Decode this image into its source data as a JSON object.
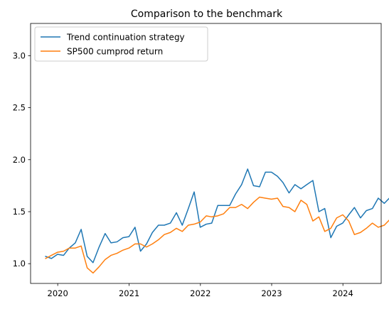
{
  "chart_data": {
    "type": "line",
    "title": "Comparison to the benchmark",
    "xlabel": "",
    "ylabel": "",
    "x_axis": {
      "type": "date",
      "ticks": [
        "2020",
        "2021",
        "2022",
        "2023",
        "2024"
      ]
    },
    "y_axis": {
      "ticks": [
        1.0,
        1.5,
        2.0,
        2.5,
        3.0
      ],
      "tick_labels": [
        "1.0",
        "1.5",
        "2.0",
        "2.5",
        "3.0"
      ],
      "range": [
        0.81,
        3.31
      ]
    },
    "x_range": [
      "2019-08-15",
      "2024-07-15"
    ],
    "grid": false,
    "legend": "top-left",
    "series": [
      {
        "name": "Trend continuation strategy",
        "color": "#1f77b4",
        "points": [
          [
            "2019-10-31",
            1.07
          ],
          [
            "2019-11-30",
            1.05
          ],
          [
            "2019-12-31",
            1.09
          ],
          [
            "2020-01-31",
            1.08
          ],
          [
            "2020-02-29",
            1.15
          ],
          [
            "2020-03-31",
            1.2
          ],
          [
            "2020-04-30",
            1.33
          ],
          [
            "2020-05-31",
            1.07
          ],
          [
            "2020-06-30",
            1.01
          ],
          [
            "2020-07-31",
            1.16
          ],
          [
            "2020-08-31",
            1.29
          ],
          [
            "2020-09-30",
            1.19
          ],
          [
            "2020-10-31",
            1.21
          ],
          [
            "2020-11-30",
            1.25
          ],
          [
            "2020-12-31",
            1.26
          ],
          [
            "2021-01-31",
            1.35
          ],
          [
            "2021-02-28",
            1.12
          ],
          [
            "2021-03-31",
            1.18
          ],
          [
            "2021-04-30",
            1.29
          ],
          [
            "2021-05-31",
            1.37
          ],
          [
            "2021-06-30",
            1.37
          ],
          [
            "2021-07-31",
            1.39
          ],
          [
            "2021-08-31",
            1.49
          ],
          [
            "2021-09-30",
            1.37
          ],
          [
            "2021-10-31",
            1.53
          ],
          [
            "2021-11-30",
            1.69
          ],
          [
            "2021-12-31",
            1.35
          ],
          [
            "2022-01-31",
            1.38
          ],
          [
            "2022-02-28",
            1.4
          ],
          [
            "2022-03-31",
            1.56
          ],
          [
            "2022-04-30",
            1.56
          ],
          [
            "2022-05-31",
            1.56
          ],
          [
            "2022-06-30",
            1.67
          ],
          [
            "2022-07-31",
            1.76
          ],
          [
            "2022-08-31",
            1.91
          ],
          [
            "2022-09-30",
            1.75
          ],
          [
            "2022-10-31",
            1.74
          ],
          [
            "2022-11-30",
            1.88
          ],
          [
            "2022-12-31",
            1.88
          ],
          [
            "2023-01-31",
            1.83
          ],
          [
            "2023-02-28",
            1.78
          ],
          [
            "2023-03-31",
            1.68
          ],
          [
            "2023-04-30",
            1.76
          ],
          [
            "2023-05-31",
            1.72
          ],
          [
            "2023-06-30",
            1.76
          ],
          [
            "2023-07-31",
            1.8
          ],
          [
            "2023-08-31",
            1.5
          ],
          [
            "2023-09-30",
            1.53
          ],
          [
            "2023-10-31",
            1.25
          ],
          [
            "2023-11-30",
            1.36
          ],
          [
            "2023-12-31",
            1.39
          ],
          [
            "2020-01-01",
            null
          ]
        ]
      }
    ]
  }
}
